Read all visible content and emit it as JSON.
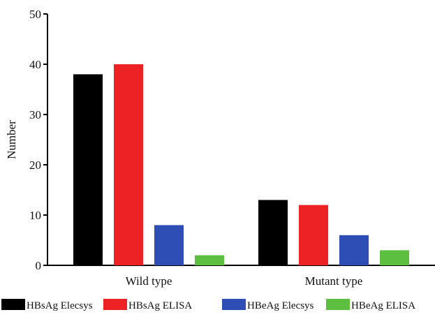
{
  "chart_data": {
    "type": "bar",
    "title": "",
    "xlabel": "",
    "ylabel": "Number",
    "ylim": [
      0,
      50
    ],
    "yticks": [
      0,
      10,
      20,
      30,
      40,
      50
    ],
    "grid": false,
    "legend_position": "bottom",
    "categories": [
      "Wild type",
      "Mutant type"
    ],
    "series": [
      {
        "name": "HBsAg Elecsys",
        "color": "#000000",
        "values": [
          38,
          13
        ]
      },
      {
        "name": "HBsAg ELISA",
        "color": "#ec2224",
        "values": [
          40,
          12
        ]
      },
      {
        "name": "HBeAg Elecsys",
        "color": "#2e4eb5",
        "values": [
          8,
          6
        ]
      },
      {
        "name": "HBeAg ELISA",
        "color": "#5cbf3f",
        "values": [
          2,
          3
        ]
      }
    ]
  }
}
